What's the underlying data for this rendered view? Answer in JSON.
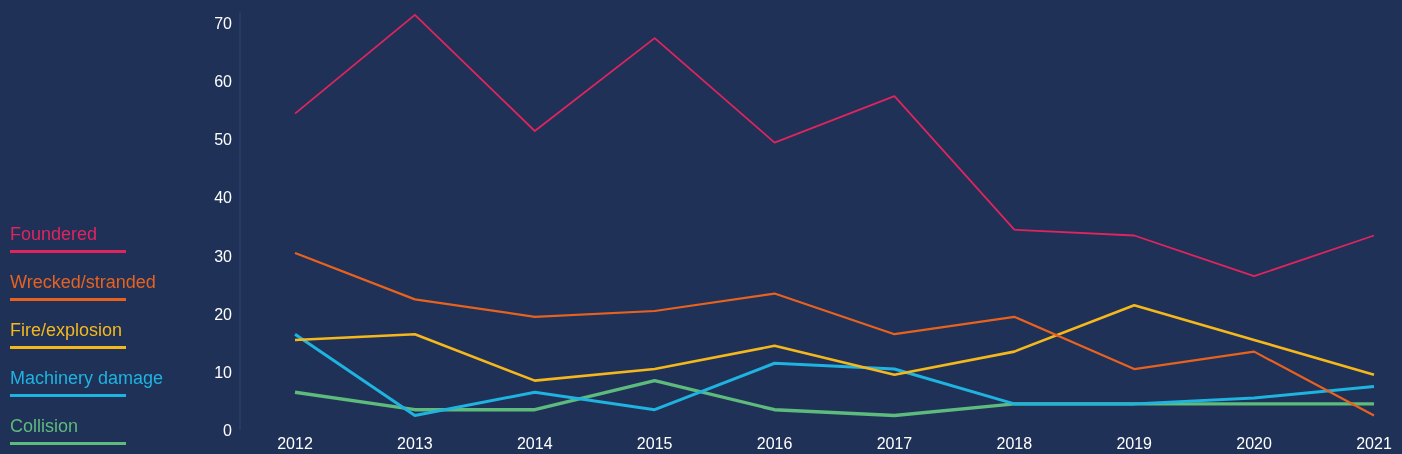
{
  "chart_data": {
    "type": "line",
    "categories": [
      "2012",
      "2013",
      "2014",
      "2015",
      "2016",
      "2017",
      "2018",
      "2019",
      "2020",
      "2021"
    ],
    "ylim": [
      0,
      72
    ],
    "yticks": [
      0,
      10,
      20,
      30,
      40,
      50,
      60,
      70
    ],
    "grid": false,
    "legend": "left",
    "marker": "none",
    "line_style": "solid",
    "series": [
      {
        "name": "Foundered",
        "color": "#e0245e",
        "values": [
          54.5,
          71.5,
          51.5,
          67.5,
          49.5,
          57.5,
          34.5,
          33.5,
          26.5,
          33.5
        ]
      },
      {
        "name": "Wrecked/stranded",
        "color": "#e8621f",
        "values": [
          30.5,
          22.5,
          19.5,
          20.5,
          23.5,
          16.5,
          19.5,
          10.5,
          13.5,
          2.5
        ]
      },
      {
        "name": "Fire/explosion",
        "color": "#f5b81c",
        "values": [
          15.5,
          16.5,
          8.5,
          10.5,
          14.5,
          9.5,
          13.5,
          21.5,
          15.5,
          9.5
        ]
      },
      {
        "name": "Machinery damage",
        "color": "#1fb3e0",
        "values": [
          16.5,
          2.5,
          6.5,
          3.5,
          11.5,
          10.5,
          4.5,
          4.5,
          5.5,
          7.5
        ]
      },
      {
        "name": "Collision",
        "color": "#5dbb7e",
        "values": [
          6.5,
          3.5,
          3.5,
          8.5,
          3.5,
          2.5,
          4.5,
          4.5,
          4.5,
          4.5
        ]
      }
    ]
  }
}
